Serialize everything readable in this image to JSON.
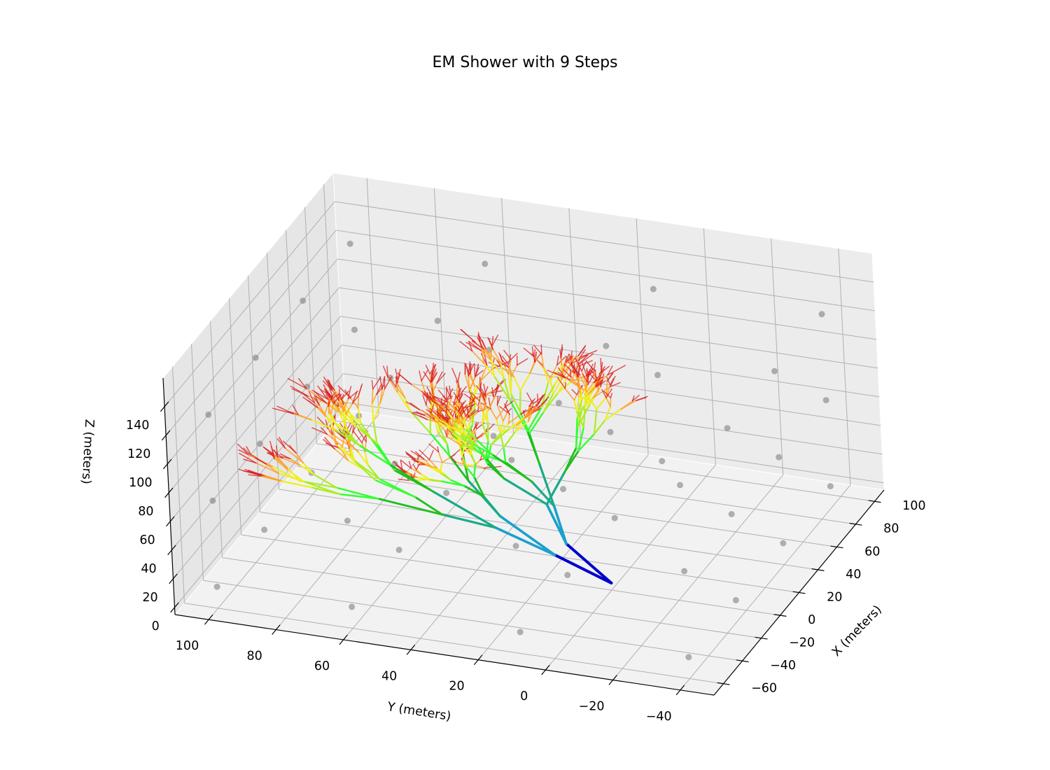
{
  "chart_data": {
    "type": "line3d",
    "title": "EM Shower with 9 Steps",
    "xlabel": "X (meters)",
    "ylabel": "Y (meters)",
    "zlabel": "Z (meters)",
    "xlim": [
      -70,
      110
    ],
    "ylim": [
      -50,
      110
    ],
    "zlim": [
      -5,
      160
    ],
    "xticks": [
      -60,
      -40,
      -20,
      0,
      20,
      40,
      60,
      80,
      100
    ],
    "yticks": [
      -40,
      -20,
      0,
      20,
      40,
      60,
      80,
      100
    ],
    "zticks": [
      0,
      20,
      40,
      60,
      80,
      100,
      120,
      140
    ],
    "grid": true,
    "pane_color": "#f2f2f2",
    "step_colors": [
      "#0000cc",
      "#1aa1cc",
      "#1aaa88",
      "#1fbf1f",
      "#33ff33",
      "#aaee22",
      "#eeee22",
      "#ffa020",
      "#dd2020"
    ],
    "step_widths": [
      4,
      3.6,
      3.2,
      2.8,
      2.4,
      2.2,
      2.0,
      1.8,
      1.4
    ],
    "shower": {
      "origin": [
        0,
        0,
        0
      ],
      "branches": 2,
      "first_step_length": 30,
      "length_decay": 0.82,
      "seed": 7
    },
    "background_points": {
      "color": "#808080",
      "x": [
        -60,
        -10,
        40,
        90
      ],
      "y": [
        -40,
        10,
        60,
        100
      ],
      "z": [
        10,
        70,
        130
      ]
    }
  }
}
